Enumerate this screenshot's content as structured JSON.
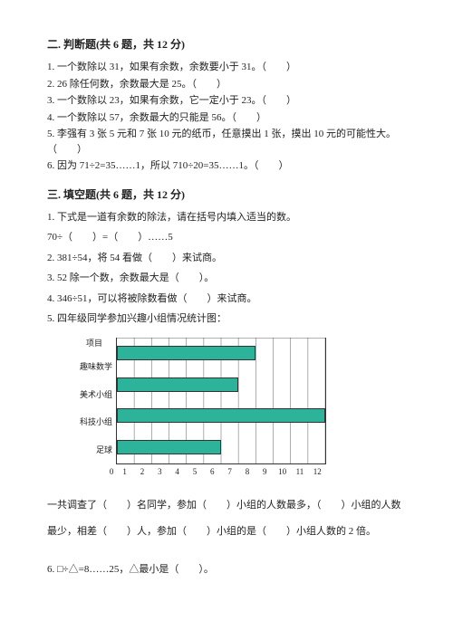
{
  "sec2": {
    "title": "二. 判断题(共 6 题，共 12 分)",
    "items": [
      "1. 一个数除以 31，如果有余数，余数要小于 31。（　　）",
      "2. 26 除任何数，余数最大是 25。（　　）",
      "3. 一个数除以 23，如果有余数，它一定小于 23。（　　）",
      "4. 一个数除以 57，余数最大的只能是 56。（　　）",
      "5. 李强有 3 张 5 元和 7 张 10 元的纸币，任意摸出 1 张，摸出 10 元的可能性大。（　　）",
      "6. 因为 71÷2=35……1，所以 710÷20=35……1。（　　）"
    ]
  },
  "sec3": {
    "title": "三. 填空题(共 6 题，共 12 分)",
    "q1": "1. 下式是一道有余数的除法，请在括号内填入适当的数。",
    "q1line": "70÷（　　）=（　　）……5",
    "q2": "2. 381÷54，将 54 看做（　　）来试商。",
    "q3": "3. 52 除一个数，余数最大是（　　）。",
    "q4": "4. 346÷51，可以将被除数看做（　　）来试商。",
    "q5": "5. 四年级同学参加兴趣小组情况统计图：",
    "q5text": "一共调查了（　　）名同学，参加（　　）小组的人数最多，（　　）小组的人数最少，相差（　　）人，参加（　　）小组的是（　　）小组人数的 2 倍。",
    "q6": "6. □÷△=8……25，△最小是（　　）。"
  },
  "chart": {
    "header": "项目",
    "categories": [
      "趣味数学",
      "美术小组",
      "科技小组",
      "足球"
    ],
    "values": [
      8,
      7,
      12,
      6
    ],
    "xmax": 12,
    "xticks": [
      0,
      1,
      2,
      3,
      4,
      5,
      6,
      7,
      8,
      9,
      10,
      11,
      12
    ],
    "bar_color": "#2db39a",
    "grid_color": "#888888",
    "axis_color": "#333333",
    "background": "#ffffff"
  }
}
